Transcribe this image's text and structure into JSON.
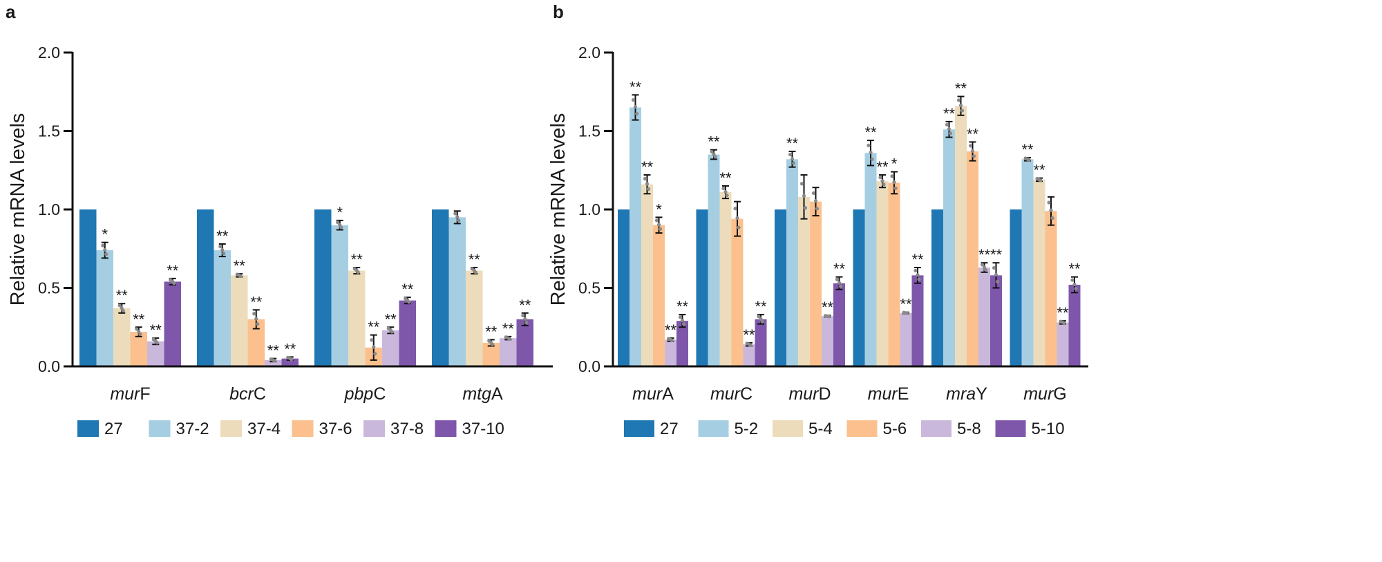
{
  "panels": [
    {
      "label": "a",
      "chart_data": {
        "type": "bar",
        "title": "",
        "xlabel": "",
        "ylabel": "Relative mRNA levels",
        "ylim": [
          0,
          2.0
        ],
        "yticks": [
          "0.0",
          "0.5",
          "1.0",
          "1.5",
          "2.0"
        ],
        "categories": [
          {
            "italic": "mur",
            "rest": "F"
          },
          {
            "italic": "bcr",
            "rest": "C"
          },
          {
            "italic": "pbp",
            "rest": "C"
          },
          {
            "italic": "mtg",
            "rest": "A"
          }
        ],
        "series": [
          {
            "name": "27",
            "color": "#1f77b4",
            "values": [
              1.0,
              1.0,
              1.0,
              1.0
            ],
            "errors": [
              0,
              0,
              0,
              0
            ],
            "sig": [
              "",
              "",
              "",
              ""
            ]
          },
          {
            "name": "37-2",
            "color": "#a6cee3",
            "values": [
              0.74,
              0.74,
              0.9,
              0.95
            ],
            "errors": [
              0.05,
              0.04,
              0.03,
              0.04
            ],
            "sig": [
              "*",
              "**",
              "*",
              ""
            ]
          },
          {
            "name": "37-4",
            "color": "#ecdcbb",
            "values": [
              0.37,
              0.58,
              0.61,
              0.61
            ],
            "errors": [
              0.03,
              0.01,
              0.02,
              0.02
            ],
            "sig": [
              "**",
              "**",
              "**",
              "**"
            ]
          },
          {
            "name": "37-6",
            "color": "#fbc08d",
            "values": [
              0.22,
              0.3,
              0.12,
              0.15
            ],
            "errors": [
              0.03,
              0.06,
              0.08,
              0.02
            ],
            "sig": [
              "**",
              "**",
              "**",
              "**"
            ]
          },
          {
            "name": "37-8",
            "color": "#cab8dc",
            "values": [
              0.16,
              0.04,
              0.23,
              0.18
            ],
            "errors": [
              0.02,
              0.01,
              0.02,
              0.01
            ],
            "sig": [
              "**",
              "**",
              "**",
              "**"
            ]
          },
          {
            "name": "37-10",
            "color": "#7e57ab",
            "values": [
              0.54,
              0.05,
              0.42,
              0.3
            ],
            "errors": [
              0.02,
              0.01,
              0.02,
              0.04
            ],
            "sig": [
              "**",
              "**",
              "**",
              "**"
            ]
          }
        ]
      }
    },
    {
      "label": "b",
      "chart_data": {
        "type": "bar",
        "title": "",
        "xlabel": "",
        "ylabel": "Relative mRNA levels",
        "ylim": [
          0,
          2.0
        ],
        "yticks": [
          "0.0",
          "0.5",
          "1.0",
          "1.5",
          "2.0"
        ],
        "categories": [
          {
            "italic": "mur",
            "rest": "A"
          },
          {
            "italic": "mur",
            "rest": "C"
          },
          {
            "italic": "mur",
            "rest": "D"
          },
          {
            "italic": "mur",
            "rest": "E"
          },
          {
            "italic": "mra",
            "rest": "Y"
          },
          {
            "italic": "mur",
            "rest": "G"
          }
        ],
        "series": [
          {
            "name": "27",
            "color": "#1f77b4",
            "values": [
              1.0,
              1.0,
              1.0,
              1.0,
              1.0,
              1.0
            ],
            "errors": [
              0,
              0,
              0,
              0,
              0,
              0
            ],
            "sig": [
              "",
              "",
              "",
              "",
              "",
              ""
            ]
          },
          {
            "name": "5-2",
            "color": "#a6cee3",
            "values": [
              1.65,
              1.35,
              1.32,
              1.36,
              1.51,
              1.32
            ],
            "errors": [
              0.08,
              0.03,
              0.05,
              0.08,
              0.05,
              0.01
            ],
            "sig": [
              "**",
              "**",
              "**",
              "**",
              "**",
              "**"
            ]
          },
          {
            "name": "5-4",
            "color": "#ecdcbb",
            "values": [
              1.16,
              1.11,
              1.08,
              1.18,
              1.66,
              1.19
            ],
            "errors": [
              0.06,
              0.04,
              0.14,
              0.04,
              0.06,
              0.01
            ],
            "sig": [
              "**",
              "**",
              "",
              "**",
              "**",
              "**"
            ]
          },
          {
            "name": "5-6",
            "color": "#fbc08d",
            "values": [
              0.9,
              0.94,
              1.05,
              1.17,
              1.37,
              0.99
            ],
            "errors": [
              0.05,
              0.11,
              0.09,
              0.07,
              0.06,
              0.09
            ],
            "sig": [
              "*",
              "",
              "",
              "*",
              "**",
              ""
            ]
          },
          {
            "name": "5-8",
            "color": "#cab8dc",
            "values": [
              0.17,
              0.14,
              0.32,
              0.34,
              0.63,
              0.28
            ],
            "errors": [
              0.01,
              0.01,
              0.005,
              0.005,
              0.03,
              0.01
            ],
            "sig": [
              "**",
              "**",
              "**",
              "**",
              "**",
              "**"
            ]
          },
          {
            "name": "5-10",
            "color": "#7e57ab",
            "values": [
              0.29,
              0.3,
              0.53,
              0.58,
              0.58,
              0.52
            ],
            "errors": [
              0.04,
              0.03,
              0.04,
              0.05,
              0.08,
              0.05
            ],
            "sig": [
              "**",
              "**",
              "**",
              "**",
              "**",
              "**"
            ]
          }
        ]
      }
    }
  ]
}
